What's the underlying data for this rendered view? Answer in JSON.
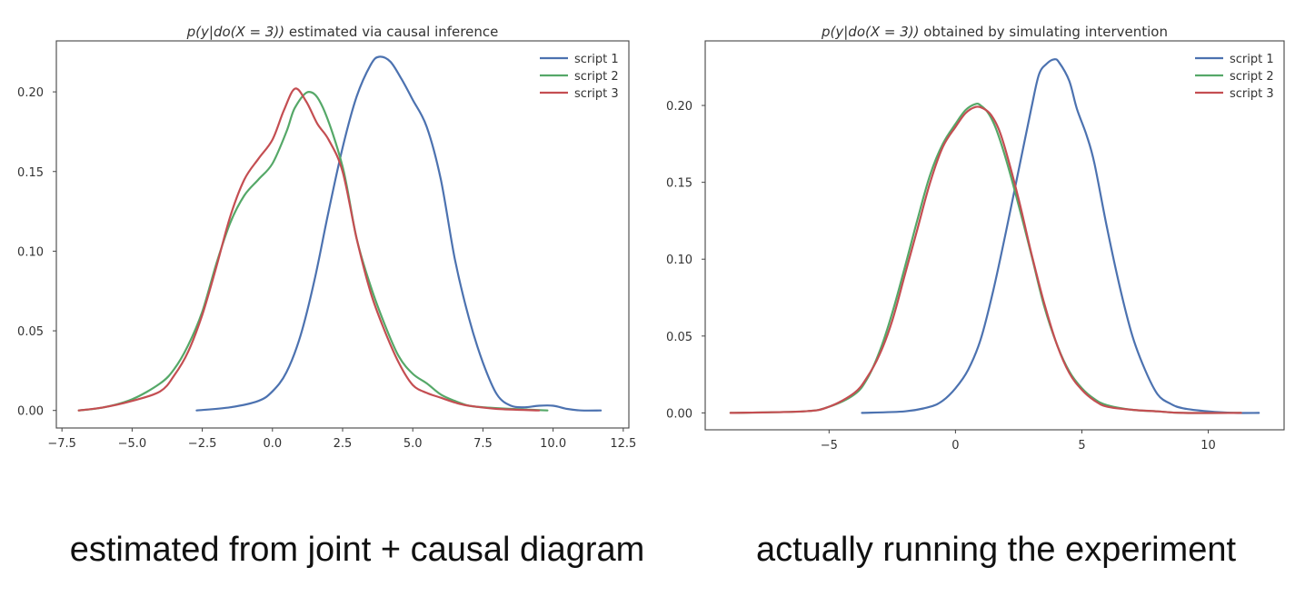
{
  "colors": {
    "script_1": "#4c72b0",
    "script_2": "#55a868",
    "script_3": "#c44e52",
    "axes": "#444444",
    "text": "#333333"
  },
  "captions": {
    "left": "estimated from joint + causal diagram",
    "right": "actually running the experiment"
  },
  "chart_data": [
    {
      "type": "line",
      "title": "p(y|do(X = 3)) estimated via causal inference",
      "title_math": "p(y|do(X = 3))",
      "title_rest": " estimated via causal inference",
      "xlabel": "",
      "ylabel": "",
      "xlim": [
        -7.7,
        12.7
      ],
      "ylim": [
        -0.011,
        0.232
      ],
      "xticks": [
        -7.5,
        -5.0,
        -2.5,
        0.0,
        2.5,
        5.0,
        7.5,
        10.0,
        12.5
      ],
      "xtick_labels": [
        "−7.5",
        "−5.0",
        "−2.5",
        "0.0",
        "2.5",
        "5.0",
        "7.5",
        "10.0",
        "12.5"
      ],
      "yticks": [
        0.0,
        0.05,
        0.1,
        0.15,
        0.2
      ],
      "ytick_labels": [
        "0.00",
        "0.05",
        "0.10",
        "0.15",
        "0.20"
      ],
      "grid": false,
      "legend_position": "top-right",
      "series": [
        {
          "name": "script 1",
          "color_key": "script_1",
          "x": [
            -2.7,
            -1.5,
            -0.5,
            0.0,
            0.5,
            1.0,
            1.5,
            2.0,
            2.5,
            3.0,
            3.5,
            3.8,
            4.2,
            4.6,
            5.0,
            5.5,
            6.0,
            6.5,
            7.0,
            7.5,
            8.0,
            8.5,
            9.0,
            9.5,
            10.0,
            10.5,
            11.0,
            11.7
          ],
          "y": [
            0.0,
            0.002,
            0.006,
            0.012,
            0.024,
            0.047,
            0.082,
            0.125,
            0.165,
            0.197,
            0.217,
            0.222,
            0.219,
            0.208,
            0.195,
            0.178,
            0.145,
            0.095,
            0.058,
            0.03,
            0.01,
            0.003,
            0.002,
            0.003,
            0.003,
            0.001,
            0.0,
            0.0
          ]
        },
        {
          "name": "script 2",
          "color_key": "script_2",
          "x": [
            -6.9,
            -6.0,
            -5.0,
            -4.0,
            -3.5,
            -3.0,
            -2.5,
            -2.0,
            -1.5,
            -1.0,
            -0.5,
            0.0,
            0.5,
            0.8,
            1.3,
            1.8,
            2.5,
            3.0,
            3.5,
            4.0,
            4.5,
            5.0,
            5.5,
            6.0,
            6.5,
            7.0,
            7.5,
            8.5,
            9.8
          ],
          "y": [
            0.0,
            0.002,
            0.007,
            0.017,
            0.026,
            0.041,
            0.062,
            0.092,
            0.118,
            0.135,
            0.145,
            0.155,
            0.175,
            0.19,
            0.2,
            0.19,
            0.153,
            0.108,
            0.078,
            0.054,
            0.034,
            0.023,
            0.017,
            0.01,
            0.006,
            0.003,
            0.002,
            0.001,
            0.0
          ]
        },
        {
          "name": "script 3",
          "color_key": "script_3",
          "x": [
            -6.9,
            -6.0,
            -5.0,
            -4.0,
            -3.5,
            -3.0,
            -2.5,
            -2.0,
            -1.5,
            -1.0,
            -0.5,
            0.0,
            0.4,
            0.8,
            1.2,
            1.6,
            2.0,
            2.5,
            3.0,
            3.5,
            4.0,
            4.5,
            5.0,
            5.5,
            6.0,
            6.5,
            7.0,
            8.0,
            9.5
          ],
          "y": [
            0.0,
            0.002,
            0.006,
            0.012,
            0.022,
            0.037,
            0.06,
            0.09,
            0.122,
            0.145,
            0.158,
            0.17,
            0.188,
            0.202,
            0.194,
            0.18,
            0.17,
            0.15,
            0.108,
            0.074,
            0.05,
            0.03,
            0.016,
            0.011,
            0.008,
            0.005,
            0.003,
            0.001,
            0.0
          ]
        }
      ]
    },
    {
      "type": "line",
      "title": "p(y|do(X = 3)) obtained by simulating intervention",
      "title_math": "p(y|do(X = 3))",
      "title_rest": " obtained by simulating intervention",
      "xlabel": "",
      "ylabel": "",
      "xlim": [
        -9.9,
        13.0
      ],
      "ylim": [
        -0.011,
        0.242
      ],
      "xticks": [
        -5,
        0,
        5,
        10
      ],
      "xtick_labels": [
        "−5",
        "0",
        "5",
        "10"
      ],
      "yticks": [
        0.0,
        0.05,
        0.1,
        0.15,
        0.2
      ],
      "ytick_labels": [
        "0.00",
        "0.05",
        "0.10",
        "0.15",
        "0.20"
      ],
      "grid": false,
      "legend_position": "top-right",
      "series": [
        {
          "name": "script 1",
          "color_key": "script_1",
          "x": [
            -3.7,
            -2.0,
            -1.0,
            -0.5,
            0.0,
            0.5,
            1.0,
            1.5,
            2.0,
            2.5,
            3.0,
            3.3,
            3.6,
            3.9,
            4.1,
            4.5,
            4.8,
            5.2,
            5.5,
            6.0,
            6.5,
            7.0,
            7.5,
            8.0,
            8.5,
            9.0,
            10.0,
            11.0,
            12.0
          ],
          "y": [
            0.0,
            0.001,
            0.004,
            0.008,
            0.016,
            0.028,
            0.048,
            0.08,
            0.118,
            0.158,
            0.198,
            0.22,
            0.227,
            0.23,
            0.228,
            0.216,
            0.198,
            0.18,
            0.162,
            0.12,
            0.082,
            0.05,
            0.028,
            0.012,
            0.006,
            0.003,
            0.001,
            0.0,
            0.0
          ]
        },
        {
          "name": "script 2",
          "color_key": "script_2",
          "x": [
            -8.9,
            -6.0,
            -5.0,
            -4.0,
            -3.5,
            -3.0,
            -2.5,
            -2.0,
            -1.5,
            -1.0,
            -0.5,
            0.0,
            0.4,
            0.8,
            1.0,
            1.3,
            1.6,
            2.0,
            2.5,
            3.0,
            3.5,
            4.0,
            4.5,
            5.0,
            5.5,
            6.0,
            7.0,
            8.0,
            9.0,
            11.3
          ],
          "y": [
            0.0,
            0.001,
            0.004,
            0.012,
            0.022,
            0.04,
            0.065,
            0.095,
            0.126,
            0.155,
            0.175,
            0.188,
            0.197,
            0.201,
            0.2,
            0.195,
            0.185,
            0.165,
            0.135,
            0.103,
            0.07,
            0.045,
            0.027,
            0.016,
            0.009,
            0.005,
            0.002,
            0.001,
            0.0,
            0.0
          ]
        },
        {
          "name": "script 3",
          "color_key": "script_3",
          "x": [
            -8.9,
            -6.0,
            -5.0,
            -4.0,
            -3.5,
            -3.0,
            -2.5,
            -2.0,
            -1.5,
            -1.0,
            -0.5,
            0.0,
            0.4,
            0.8,
            1.1,
            1.4,
            1.7,
            2.0,
            2.5,
            3.0,
            3.5,
            4.0,
            4.5,
            5.0,
            5.5,
            6.0,
            7.0,
            8.0,
            9.0,
            11.3
          ],
          "y": [
            0.0,
            0.001,
            0.004,
            0.013,
            0.023,
            0.038,
            0.06,
            0.09,
            0.12,
            0.15,
            0.173,
            0.186,
            0.195,
            0.199,
            0.198,
            0.194,
            0.185,
            0.17,
            0.139,
            0.104,
            0.072,
            0.045,
            0.026,
            0.015,
            0.008,
            0.004,
            0.002,
            0.001,
            0.0,
            0.0
          ]
        }
      ]
    }
  ]
}
